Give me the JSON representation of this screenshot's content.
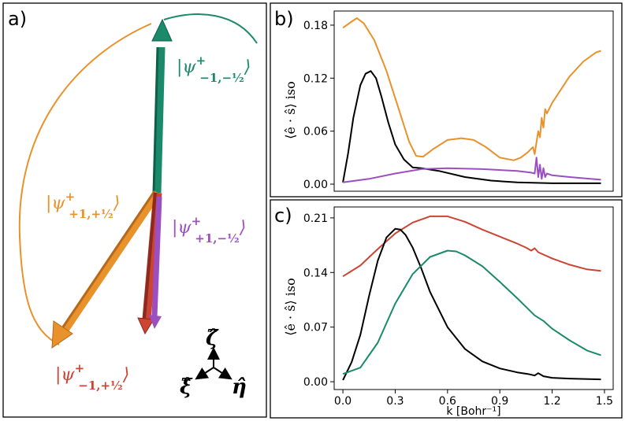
{
  "panels": {
    "a": {
      "label": "a)"
    },
    "b": {
      "label": "b)"
    },
    "c": {
      "label": "c)"
    }
  },
  "state_labels": {
    "teal": {
      "main": "|ψ",
      "sup": "+",
      "sub": "−1,−½",
      "close": "⟩",
      "color": "#1b8a6b"
    },
    "orange": {
      "main": "|ψ",
      "sup": "+",
      "sub": "+1,+½",
      "close": "⟩",
      "color": "#e8922c"
    },
    "purple": {
      "main": "|ψ",
      "sup": "+",
      "sub": "+1,−½",
      "close": "⟩",
      "color": "#9b4fc0"
    },
    "red": {
      "main": "|ψ",
      "sup": "+",
      "sub": "−1,+½",
      "close": "⟩",
      "color": "#cc4433"
    }
  },
  "axes_triad": {
    "zeta": "ζ̂",
    "xi": "ξ̂",
    "eta": "η̂"
  },
  "colors": {
    "teal": "#1b8a6b",
    "orange": "#e8922c",
    "purple": "#9b4fc0",
    "red": "#cc4433",
    "black": "#000000",
    "dark_red": "#8c2a1f"
  },
  "chart_data": [
    {
      "type": "line",
      "panel": "b",
      "ylabel": "⟨ê · ŝ⟩ iso",
      "xlim": [
        -0.05,
        1.55
      ],
      "ylim": [
        -0.008,
        0.196
      ],
      "xticks": [],
      "yticks": [
        "0.00",
        "0.06",
        "0.12",
        "0.18"
      ],
      "yticks_values": [
        0.0,
        0.06,
        0.12,
        0.18
      ],
      "series": [
        {
          "color": "orange",
          "x": [
            0.0,
            0.05,
            0.08,
            0.12,
            0.18,
            0.25,
            0.32,
            0.38,
            0.42,
            0.46,
            0.52,
            0.6,
            0.68,
            0.75,
            0.82,
            0.9,
            0.98,
            1.02,
            1.06,
            1.09,
            1.1,
            1.12,
            1.13,
            1.14,
            1.15,
            1.16,
            1.17,
            1.2,
            1.25,
            1.3,
            1.38,
            1.45,
            1.48
          ],
          "y": [
            0.177,
            0.184,
            0.188,
            0.182,
            0.163,
            0.128,
            0.085,
            0.048,
            0.032,
            0.031,
            0.04,
            0.05,
            0.052,
            0.05,
            0.042,
            0.03,
            0.027,
            0.03,
            0.036,
            0.042,
            0.034,
            0.06,
            0.053,
            0.075,
            0.064,
            0.085,
            0.08,
            0.092,
            0.107,
            0.122,
            0.139,
            0.149,
            0.151
          ]
        },
        {
          "color": "black",
          "x": [
            0.0,
            0.03,
            0.06,
            0.1,
            0.13,
            0.16,
            0.19,
            0.22,
            0.26,
            0.3,
            0.35,
            0.4,
            0.45,
            0.55,
            0.7,
            0.85,
            1.0,
            1.2,
            1.48
          ],
          "y": [
            0.002,
            0.035,
            0.075,
            0.112,
            0.125,
            0.128,
            0.12,
            0.1,
            0.07,
            0.045,
            0.028,
            0.019,
            0.018,
            0.015,
            0.008,
            0.004,
            0.002,
            0.001,
            0.001
          ]
        },
        {
          "color": "purple",
          "x": [
            0.0,
            0.15,
            0.3,
            0.45,
            0.6,
            0.8,
            1.0,
            1.08,
            1.1,
            1.11,
            1.12,
            1.13,
            1.14,
            1.15,
            1.16,
            1.17,
            1.2,
            1.3,
            1.48
          ],
          "y": [
            0.002,
            0.006,
            0.012,
            0.017,
            0.018,
            0.017,
            0.015,
            0.013,
            0.012,
            0.03,
            0.008,
            0.022,
            0.006,
            0.018,
            0.008,
            0.012,
            0.01,
            0.008,
            0.005
          ]
        }
      ]
    },
    {
      "type": "line",
      "panel": "c",
      "ylabel": "⟨ê · ŝ⟩ iso",
      "xlabel": "k [Bohr⁻¹]",
      "xlim": [
        -0.05,
        1.55
      ],
      "ylim": [
        -0.01,
        0.224
      ],
      "xticks": [
        "0.0",
        "0.3",
        "0.6",
        "0.9",
        "1.2",
        "1.5"
      ],
      "xticks_values": [
        0.0,
        0.3,
        0.6,
        0.9,
        1.2,
        1.5
      ],
      "yticks": [
        "0.00",
        "0.07",
        "0.14",
        "0.21"
      ],
      "yticks_values": [
        0.0,
        0.07,
        0.14,
        0.21
      ],
      "series": [
        {
          "color": "red",
          "x": [
            0.0,
            0.1,
            0.2,
            0.3,
            0.4,
            0.5,
            0.6,
            0.7,
            0.8,
            0.9,
            1.0,
            1.05,
            1.08,
            1.1,
            1.12,
            1.14,
            1.2,
            1.3,
            1.4,
            1.48
          ],
          "y": [
            0.135,
            0.149,
            0.17,
            0.19,
            0.204,
            0.212,
            0.212,
            0.205,
            0.195,
            0.186,
            0.177,
            0.172,
            0.168,
            0.171,
            0.166,
            0.164,
            0.158,
            0.15,
            0.144,
            0.142
          ]
        },
        {
          "color": "black",
          "x": [
            0.0,
            0.05,
            0.1,
            0.15,
            0.2,
            0.25,
            0.3,
            0.33,
            0.36,
            0.4,
            0.45,
            0.5,
            0.6,
            0.7,
            0.8,
            0.9,
            1.0,
            1.06,
            1.1,
            1.12,
            1.15,
            1.2,
            1.3,
            1.48
          ],
          "y": [
            0.002,
            0.025,
            0.06,
            0.11,
            0.155,
            0.185,
            0.196,
            0.195,
            0.188,
            0.172,
            0.145,
            0.115,
            0.07,
            0.042,
            0.026,
            0.017,
            0.012,
            0.01,
            0.008,
            0.011,
            0.007,
            0.005,
            0.004,
            0.003
          ]
        },
        {
          "color": "teal",
          "x": [
            0.0,
            0.1,
            0.2,
            0.3,
            0.4,
            0.5,
            0.6,
            0.65,
            0.7,
            0.8,
            0.9,
            1.0,
            1.1,
            1.15,
            1.2,
            1.3,
            1.4,
            1.48
          ],
          "y": [
            0.01,
            0.018,
            0.05,
            0.1,
            0.138,
            0.16,
            0.168,
            0.167,
            0.162,
            0.148,
            0.128,
            0.107,
            0.085,
            0.078,
            0.068,
            0.053,
            0.04,
            0.034
          ]
        }
      ]
    }
  ]
}
